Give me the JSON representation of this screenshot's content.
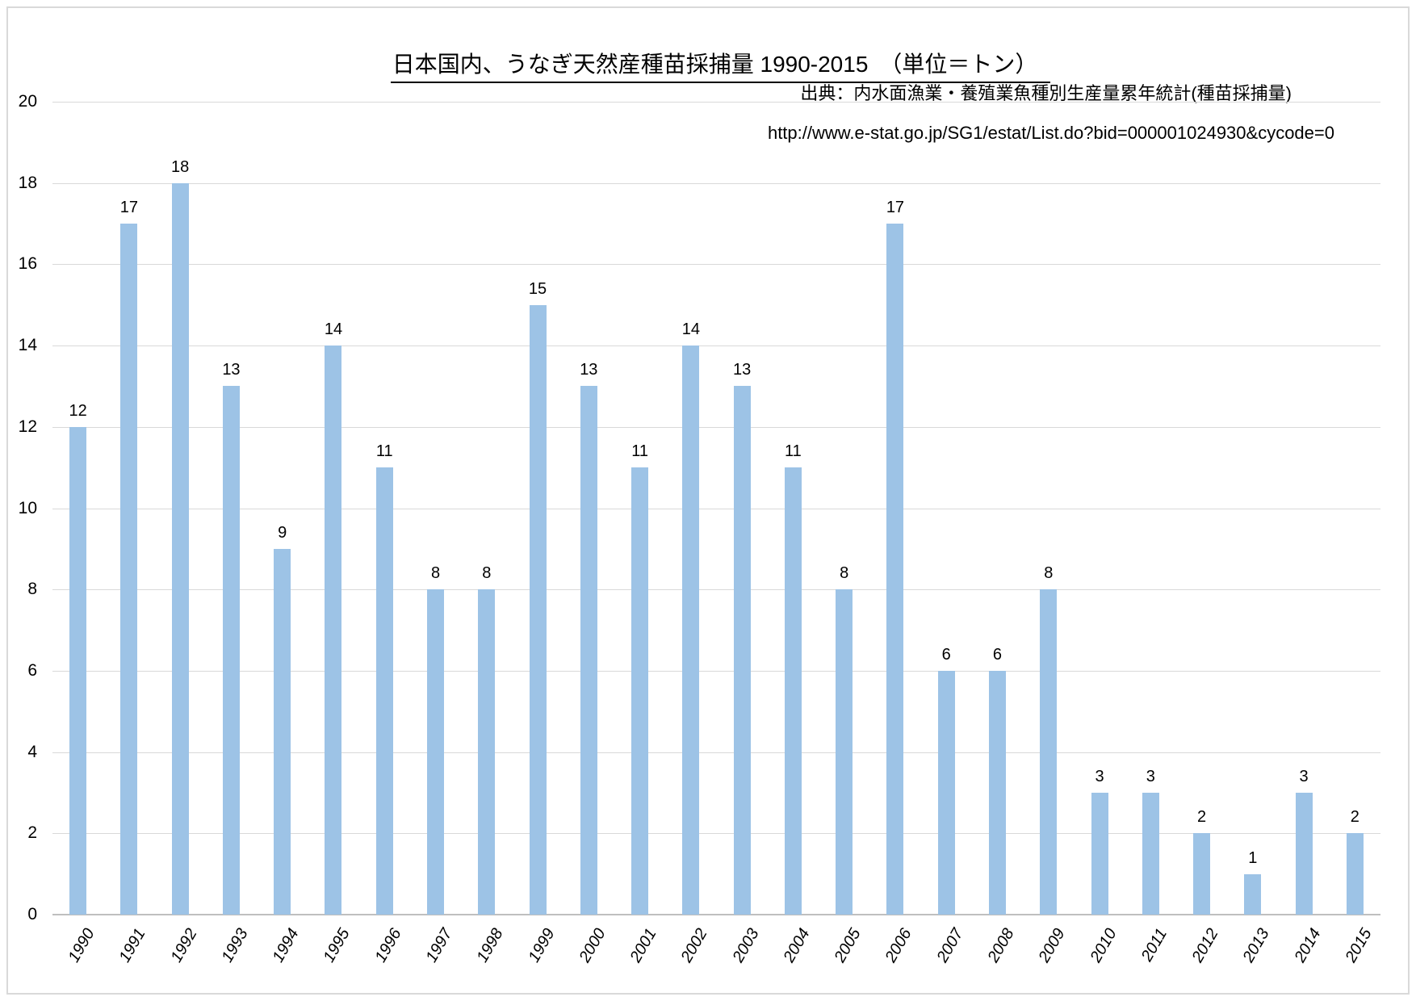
{
  "chart_data": {
    "type": "bar",
    "title": "日本国内、うなぎ天然産種苗採捕量 1990-2015　（単位＝トン）",
    "source_note": "出典：内水面漁業・養殖業魚種別生産量累年統計(種苗採捕量)",
    "source_url": "http://www.e-stat.go.jp/SG1/estat/List.do?bid=000001024930&cycode=0",
    "categories": [
      "1990",
      "1991",
      "1992",
      "1993",
      "1994",
      "1995",
      "1996",
      "1997",
      "1998",
      "1999",
      "2000",
      "2001",
      "2002",
      "2003",
      "2004",
      "2005",
      "2006",
      "2007",
      "2008",
      "2009",
      "2010",
      "2011",
      "2012",
      "2013",
      "2014",
      "2015"
    ],
    "values": [
      12,
      17,
      18,
      13,
      9,
      14,
      11,
      8,
      8,
      15,
      13,
      11,
      14,
      13,
      11,
      8,
      17,
      6,
      6,
      8,
      3,
      3,
      2,
      1,
      3,
      2
    ],
    "xlabel": "",
    "ylabel": "",
    "ylim": [
      0,
      20
    ],
    "yticks": [
      0,
      2,
      4,
      6,
      8,
      10,
      12,
      14,
      16,
      18,
      20
    ],
    "grid": true,
    "legend": false,
    "data_labels": true,
    "colors": {
      "bar": "#9DC3E6",
      "gridline": "#D9D9D9",
      "axis": "#BFBFBF",
      "text": "#000000",
      "background": "#FFFFFF",
      "border": "#D9D9D9"
    }
  }
}
